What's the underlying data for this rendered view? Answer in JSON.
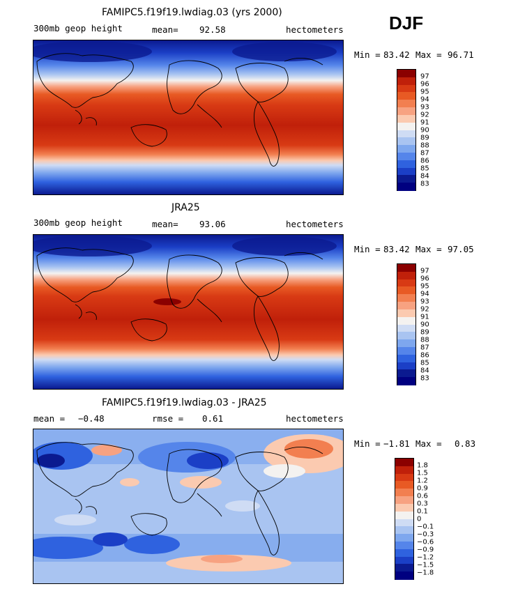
{
  "season": "DJF",
  "panels": [
    {
      "title": "FAMIPC5.f19f19.lwdiag.03 (yrs 2000)",
      "field_label": "300mb geop height",
      "stat_label": "mean=",
      "stat_value": "92.58",
      "units": "hectometers",
      "min_label": "Min =",
      "min_value": "83.42",
      "max_label": "Max =",
      "max_value": "96.71",
      "colorbar_labels": [
        "97",
        "96",
        "95",
        "94",
        "93",
        "92",
        "91",
        "90",
        "89",
        "88",
        "87",
        "86",
        "85",
        "84",
        "83"
      ],
      "colorbar_colors": [
        "#8b0000",
        "#c0200a",
        "#d83a14",
        "#e85a24",
        "#f27f50",
        "#f7a281",
        "#fbcab0",
        "#f4f2f0",
        "#cfdcf4",
        "#a9c4f1",
        "#7ea7ee",
        "#5585ea",
        "#2f62df",
        "#1b3fc6",
        "#0b1a90",
        "#000080"
      ]
    },
    {
      "title": "JRA25",
      "field_label": "300mb geop height",
      "stat_label": "mean=",
      "stat_value": "93.06",
      "units": "hectometers",
      "min_label": "Min =",
      "min_value": "83.42",
      "max_label": "Max =",
      "max_value": "97.05",
      "colorbar_labels": [
        "97",
        "96",
        "95",
        "94",
        "93",
        "92",
        "91",
        "90",
        "89",
        "88",
        "87",
        "86",
        "85",
        "84",
        "83"
      ],
      "colorbar_colors": [
        "#8b0000",
        "#c0200a",
        "#d83a14",
        "#e85a24",
        "#f27f50",
        "#f7a281",
        "#fbcab0",
        "#f4f2f0",
        "#cfdcf4",
        "#a9c4f1",
        "#7ea7ee",
        "#5585ea",
        "#2f62df",
        "#1b3fc6",
        "#0b1a90",
        "#000080"
      ]
    },
    {
      "title": "FAMIPC5.f19f19.lwdiag.03 - JRA25",
      "field_label": "mean =",
      "stat_label": "rmse =",
      "stat_value": "0.61",
      "mean_value": "−0.48",
      "units": "hectometers",
      "min_label": "Min =",
      "min_value": "−1.81",
      "max_label": "Max =",
      "max_value": "0.83",
      "colorbar_labels": [
        "1.8",
        "1.5",
        "1.2",
        "0.9",
        "0.6",
        "0.3",
        "0.1",
        "0",
        "−0.1",
        "−0.3",
        "−0.6",
        "−0.9",
        "−1.2",
        "−1.5",
        "−1.8"
      ],
      "colorbar_colors": [
        "#8b0000",
        "#c0200a",
        "#d83a14",
        "#e85a24",
        "#f27f50",
        "#f7a281",
        "#fbcab0",
        "#f4f2f0",
        "#cfdcf4",
        "#a9c4f1",
        "#7ea7ee",
        "#5585ea",
        "#2f62df",
        "#1b3fc6",
        "#0b1a90",
        "#000080"
      ]
    }
  ]
}
